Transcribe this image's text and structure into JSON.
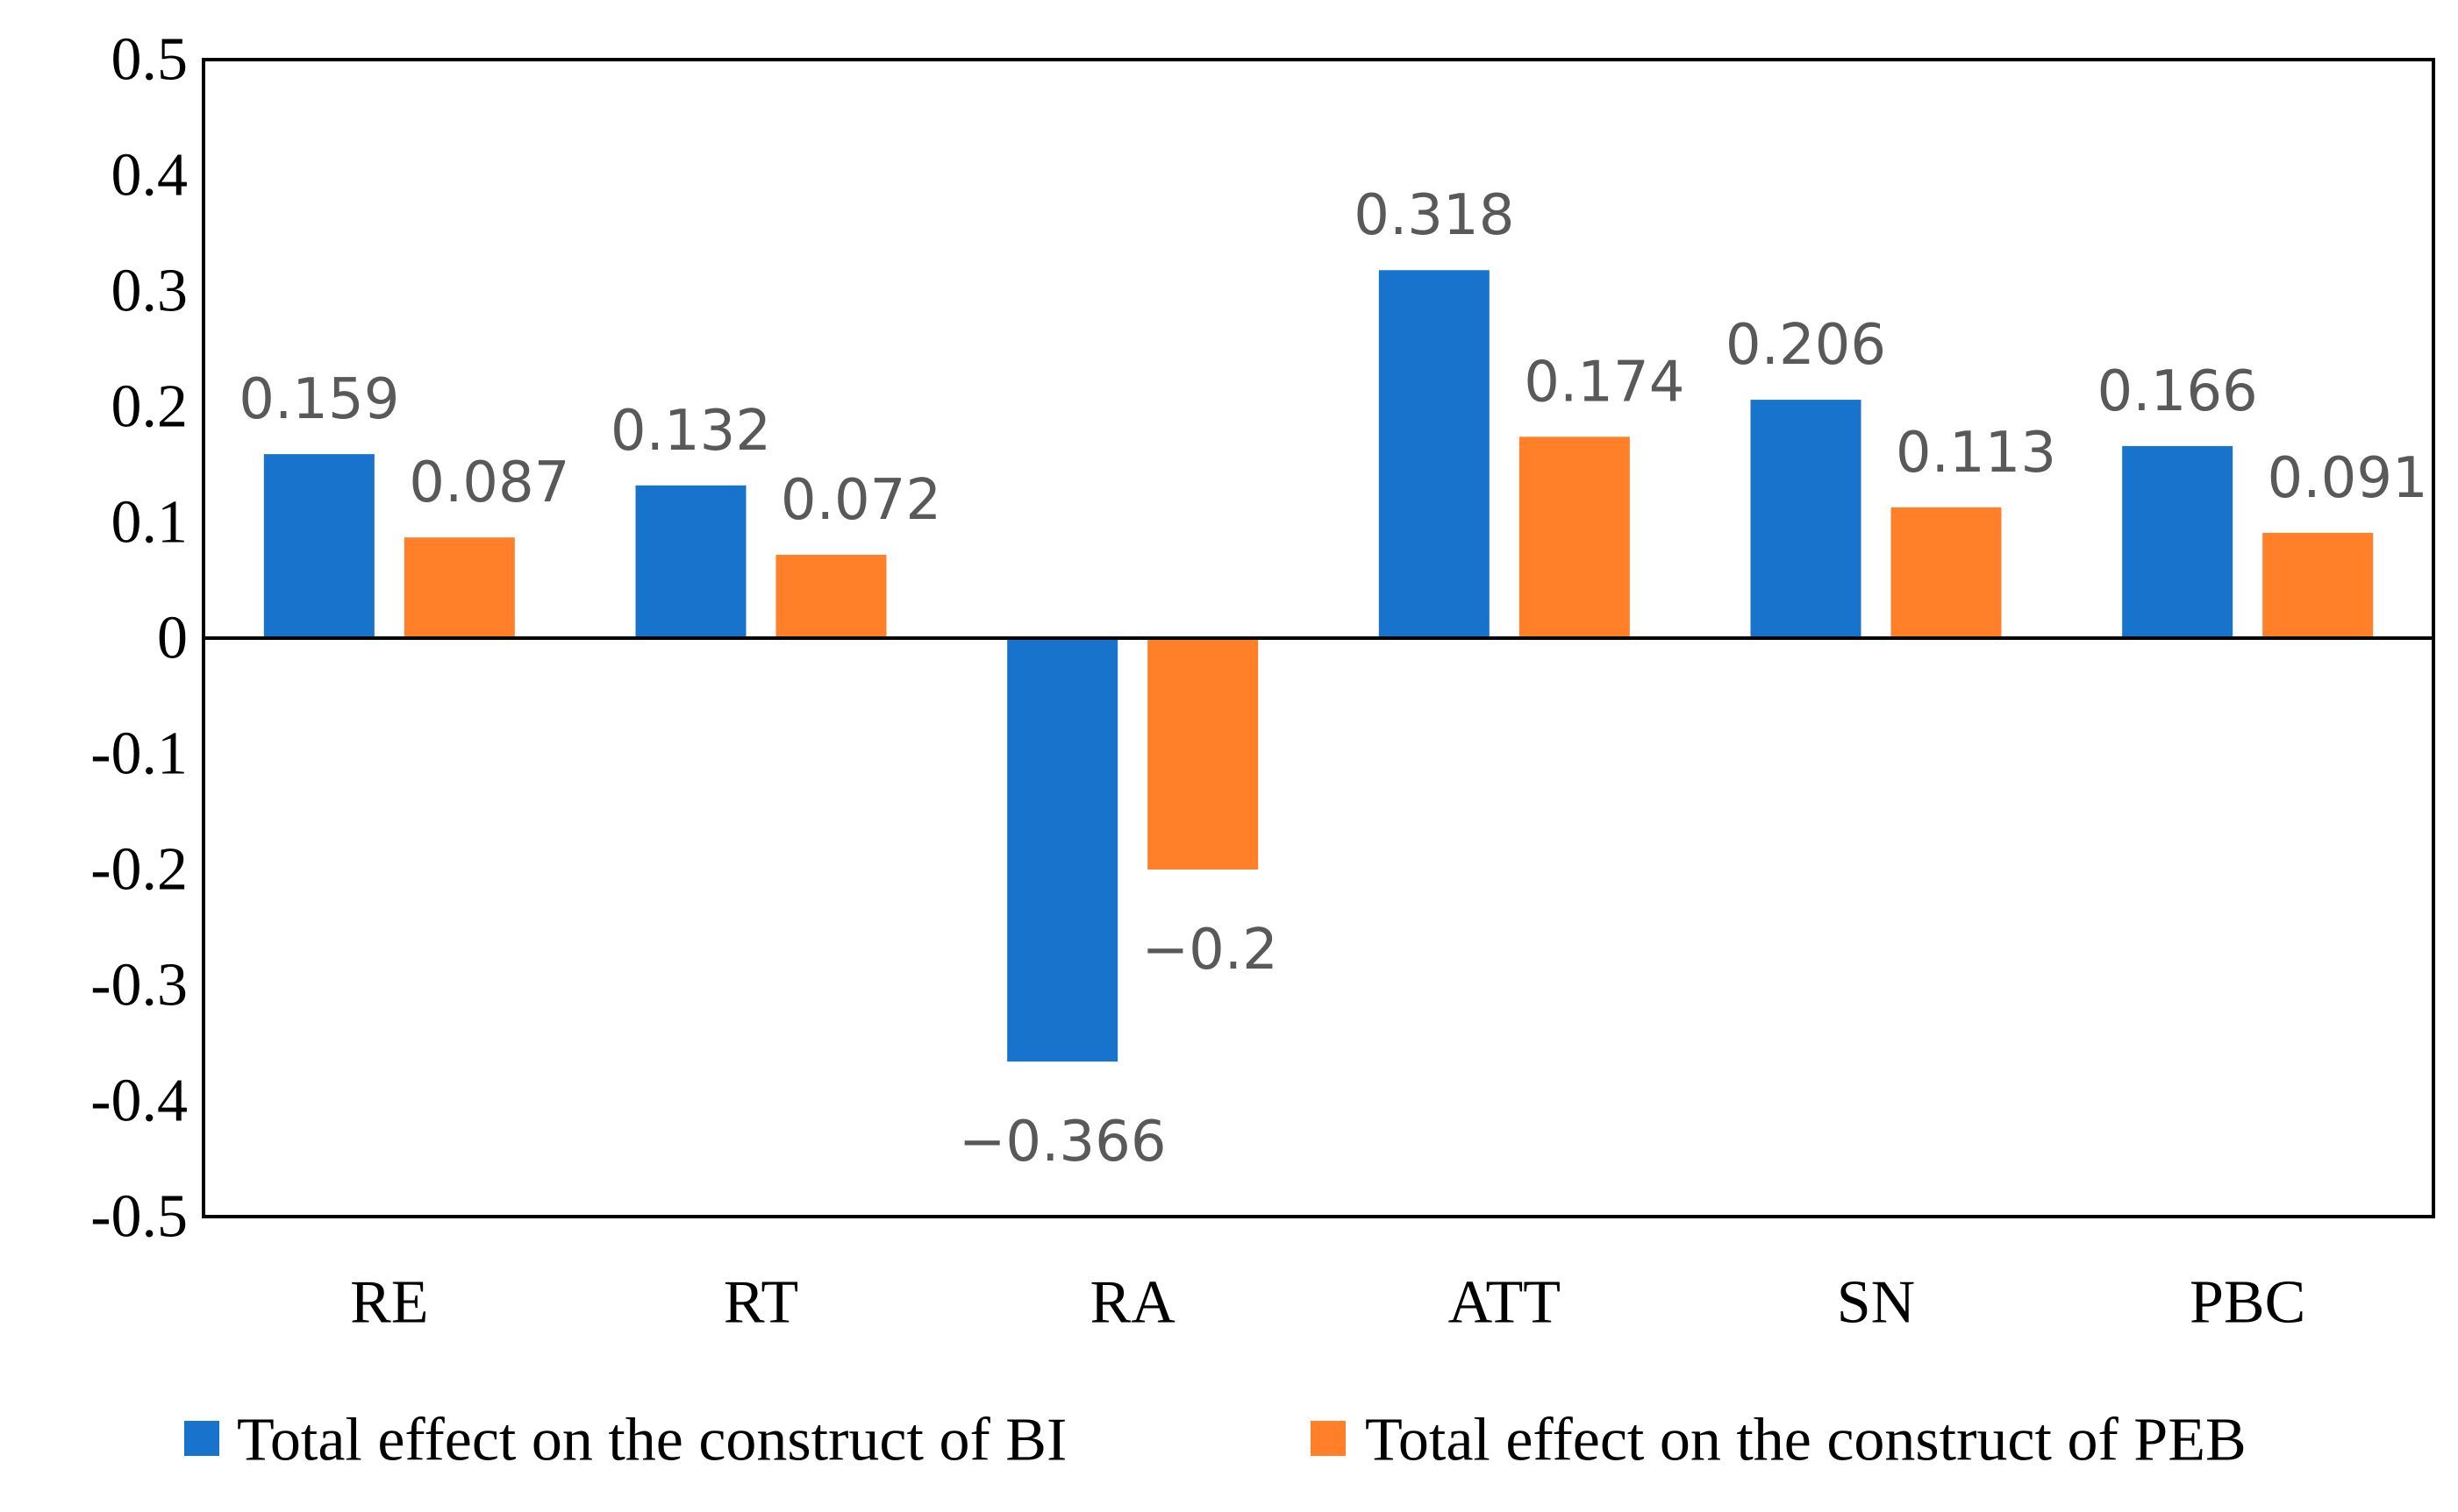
{
  "chart_data": {
    "type": "bar",
    "categories": [
      "RE",
      "RT",
      "RA",
      "ATT",
      "SN",
      "PBC"
    ],
    "series": [
      {
        "name": "Total effect on the construct of BI",
        "color": "#1873CC",
        "values": [
          0.159,
          0.132,
          -0.366,
          0.318,
          0.206,
          0.166
        ],
        "labels": [
          "0.159",
          "0.132",
          "−0.366",
          "0.318",
          "0.206",
          "0.166"
        ]
      },
      {
        "name": "Total effect on the construct of PEB",
        "color": "#FF8028",
        "values": [
          0.087,
          0.072,
          -0.2,
          0.174,
          0.113,
          0.091
        ],
        "labels": [
          "0.087",
          "0.072",
          "−0.2",
          "0.174",
          "0.113",
          "0.091"
        ]
      }
    ],
    "ylim": [
      -0.5,
      0.5
    ],
    "yticks": [
      0.5,
      0.4,
      0.3,
      0.2,
      0.1,
      0,
      -0.1,
      -0.2,
      -0.3,
      -0.4,
      -0.5
    ],
    "ytick_labels": [
      "0.5",
      "0.4",
      "0.3",
      "0.2",
      "0.1",
      "0",
      "-0.1",
      "-0.2",
      "-0.3",
      "-0.4",
      "-0.5"
    ],
    "title": "",
    "xlabel": "",
    "ylabel": "",
    "grid": false,
    "legend_position": "bottom"
  }
}
